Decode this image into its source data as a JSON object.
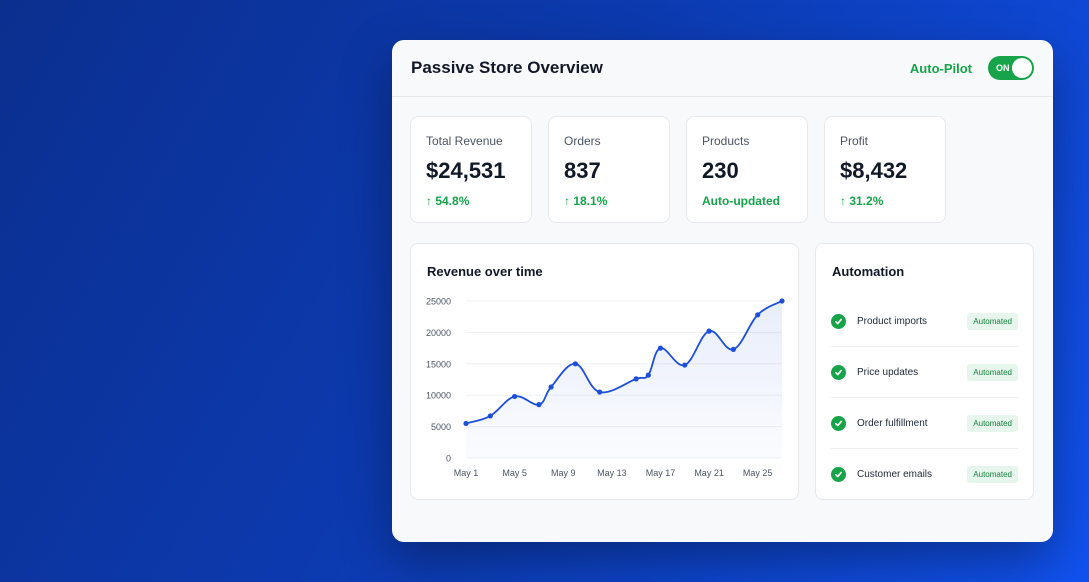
{
  "header": {
    "title": "Passive Store Overview",
    "autopilot_label": "Auto-Pilot",
    "toggle_label": "ON",
    "toggle_state": "on"
  },
  "stats": [
    {
      "label": "Total Revenue",
      "value": "$24,531",
      "change": "↑ 54.8%"
    },
    {
      "label": "Orders",
      "value": "837",
      "change": "↑ 18.1%"
    },
    {
      "label": "Products",
      "value": "230",
      "change": "Auto-updated"
    },
    {
      "label": "Profit",
      "value": "$8,432",
      "change": "↑ 31.2%"
    }
  ],
  "chart": {
    "title": "Revenue over time"
  },
  "chart_data": {
    "type": "area",
    "x": [
      1,
      3,
      5,
      7,
      8,
      10,
      12,
      15,
      16,
      17,
      19,
      21,
      23,
      25,
      27
    ],
    "values": [
      5500,
      6700,
      9800,
      8500,
      11300,
      15000,
      10500,
      12600,
      13200,
      17500,
      14800,
      20200,
      17300,
      22800,
      25000
    ],
    "xtick_labels": [
      "May 1",
      "May 5",
      "May 9",
      "May 13",
      "May 17",
      "May 21",
      "May 25"
    ],
    "ytick_labels": [
      "0",
      "5000",
      "10000",
      "15000",
      "20000",
      "25000"
    ],
    "ylim": [
      0,
      25000
    ],
    "color": "#1d4fd8"
  },
  "automation": {
    "title": "Automation",
    "items": [
      {
        "name": "Product imports",
        "status": "Automated"
      },
      {
        "name": "Price updates",
        "status": "Automated"
      },
      {
        "name": "Order fulfillment",
        "status": "Automated"
      },
      {
        "name": "Customer emails",
        "status": "Automated"
      }
    ]
  },
  "colors": {
    "accent": "#16a34a",
    "line": "#1d4fd8"
  }
}
